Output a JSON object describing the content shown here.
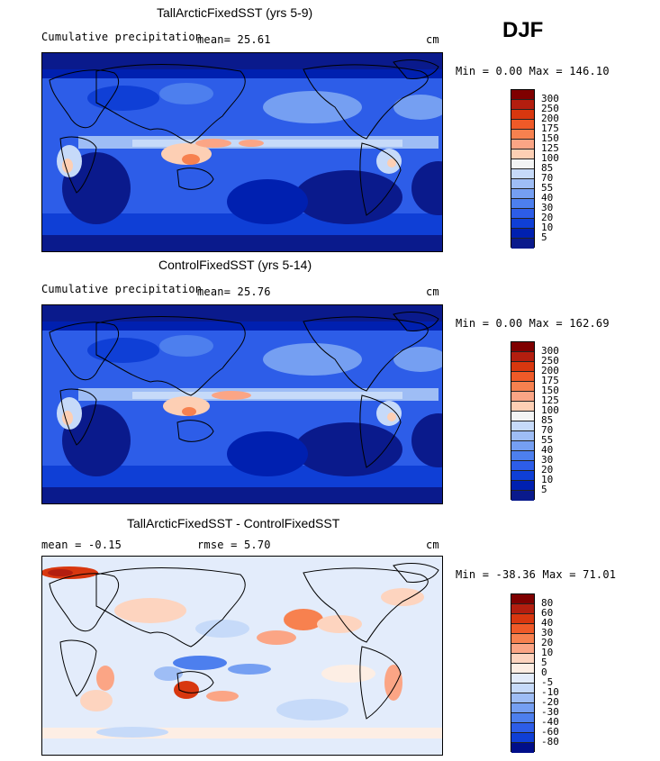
{
  "season": "DJF",
  "panels": [
    {
      "title": "TallArcticFixedSST (yrs 5-9)",
      "stat1": "Cumulative precipitation",
      "stat2": "mean=  25.61",
      "units": "cm",
      "range": "Min =    0.00 Max = 146.10",
      "colorbar": {
        "labels": [
          "300",
          "250",
          "200",
          "175",
          "150",
          "125",
          "100",
          "85",
          "70",
          "55",
          "40",
          "30",
          "20",
          "10",
          "5"
        ],
        "colors": [
          "#7f0000",
          "#b31e0f",
          "#d8370f",
          "#ef5a28",
          "#f7814f",
          "#fba585",
          "#fdcfb4",
          "#f3f4f4",
          "#c6daf9",
          "#9ebdf5",
          "#759ff2",
          "#4d7fee",
          "#2d5de8",
          "#0f3fd6",
          "#0020b0",
          "#0a1a8c"
        ]
      }
    },
    {
      "title": "ControlFixedSST (yrs 5-14)",
      "stat1": "Cumulative precipitation",
      "stat2": "mean=  25.76",
      "units": "cm",
      "range": "Min =    0.00 Max = 162.69",
      "colorbar": {
        "labels": [
          "300",
          "250",
          "200",
          "175",
          "150",
          "125",
          "100",
          "85",
          "70",
          "55",
          "40",
          "30",
          "20",
          "10",
          "5"
        ],
        "colors": [
          "#7f0000",
          "#b31e0f",
          "#d8370f",
          "#ef5a28",
          "#f7814f",
          "#fba585",
          "#fdcfb4",
          "#f3f4f4",
          "#c6daf9",
          "#9ebdf5",
          "#759ff2",
          "#4d7fee",
          "#2d5de8",
          "#0f3fd6",
          "#0020b0",
          "#0a1a8c"
        ]
      }
    },
    {
      "title": "TallArcticFixedSST - ControlFixedSST",
      "stat1": "mean =  -0.15",
      "stat2": "rmse =   5.70",
      "units": "cm",
      "range": "Min = -38.36 Max =  71.01",
      "colorbar": {
        "labels": [
          "80",
          "60",
          "40",
          "30",
          "20",
          "10",
          "5",
          "0",
          "-5",
          "-10",
          "-20",
          "-30",
          "-40",
          "-60",
          "-80"
        ],
        "colors": [
          "#7f0000",
          "#b31e0f",
          "#d8370f",
          "#ef5a28",
          "#f7814f",
          "#fba585",
          "#fdd4bf",
          "#fdeee4",
          "#e3ecfb",
          "#c6daf9",
          "#9ebdf5",
          "#759ff2",
          "#4d7fee",
          "#2d5de8",
          "#0f3fd6",
          "#000e8a"
        ]
      }
    }
  ]
}
